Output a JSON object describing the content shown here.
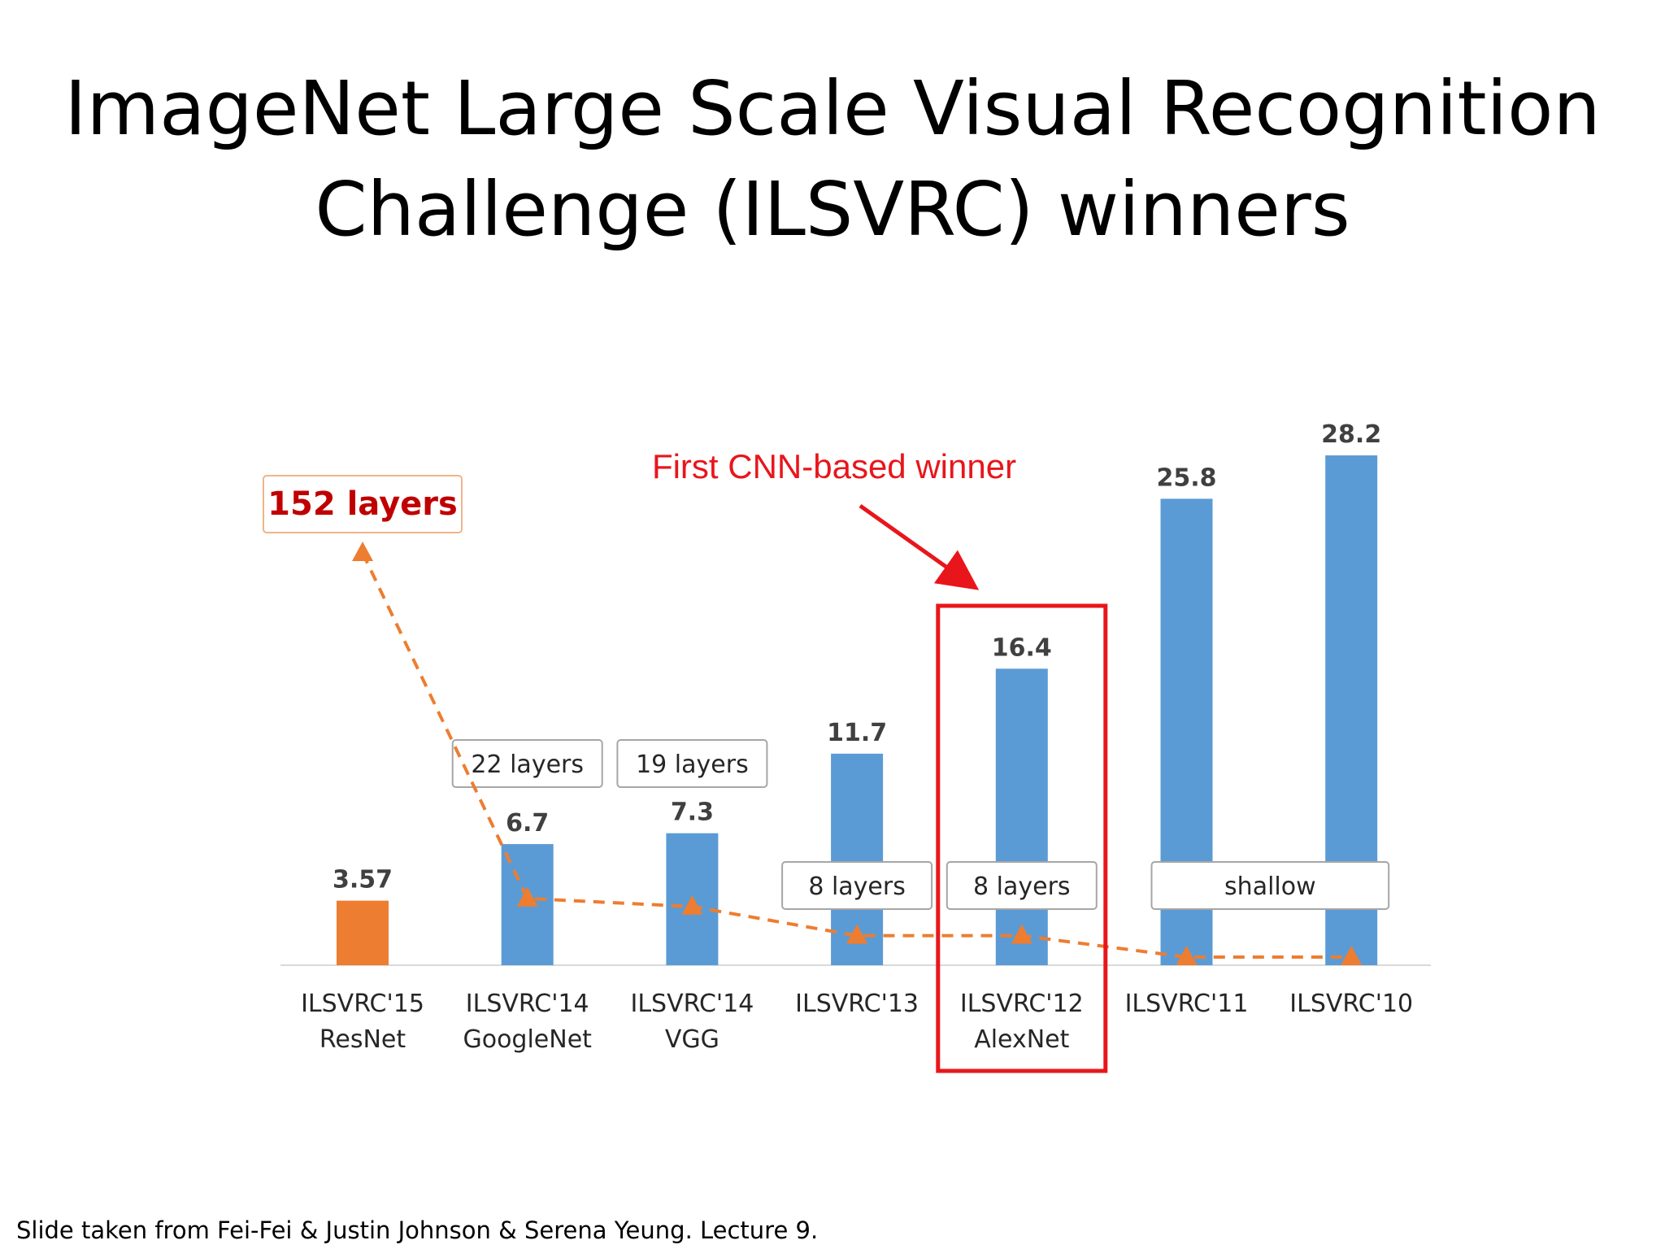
{
  "slide": {
    "title_line1": "ImageNet Large Scale Visual Recognition",
    "title_line2": "Challenge (ILSVRC) winners",
    "caption": "Slide taken from Fei-Fei & Justin Johnson & Serena Yeung. Lecture 9."
  },
  "chart_data": {
    "type": "bar",
    "title": "",
    "xlabel": "",
    "ylabel": "",
    "ylim": [
      0,
      28.2
    ],
    "grid": false,
    "categories": [
      [
        "ILSVRC'15",
        "ResNet"
      ],
      [
        "ILSVRC'14",
        "GoogleNet"
      ],
      [
        "ILSVRC'14",
        "VGG"
      ],
      [
        "ILSVRC'13",
        ""
      ],
      [
        "ILSVRC'12",
        "AlexNet"
      ],
      [
        "ILSVRC'11",
        ""
      ],
      [
        "ILSVRC'10",
        ""
      ]
    ],
    "values": [
      3.57,
      6.7,
      7.3,
      11.7,
      16.4,
      25.8,
      28.2
    ],
    "value_labels": [
      "3.57",
      "6.7",
      "7.3",
      "11.7",
      "16.4",
      "25.8",
      "28.2"
    ],
    "bar_colors": [
      "#ed7d31",
      "#5b9bd5",
      "#5b9bd5",
      "#5b9bd5",
      "#5b9bd5",
      "#5b9bd5",
      "#5b9bd5"
    ],
    "layer_labels": [
      {
        "text": "152 layers",
        "bars": [
          0
        ],
        "style": "highlight"
      },
      {
        "text": "22 layers",
        "bars": [
          1
        ],
        "style": "normal"
      },
      {
        "text": "19 layers",
        "bars": [
          2
        ],
        "style": "normal"
      },
      {
        "text": "8 layers",
        "bars": [
          3
        ],
        "style": "normal"
      },
      {
        "text": "8 layers",
        "bars": [
          4
        ],
        "style": "normal"
      },
      {
        "text": "shallow",
        "bars": [
          5,
          6
        ],
        "style": "normal"
      }
    ],
    "depth_trend": {
      "note": "dashed orange line with triangle markers indicating relative network depth",
      "color": "#ed7d31",
      "relative_depth": [
        1.0,
        0.145,
        0.125,
        0.053,
        0.053,
        0.0,
        0.0
      ]
    },
    "annotation": {
      "text": "First CNN-based winner",
      "color": "#e8161b",
      "target_bar": 4
    },
    "colors": {
      "highlight_bar": "#ed7d31",
      "bar": "#5b9bd5",
      "annotation": "#e8161b",
      "highlight_label": "#c00000"
    }
  }
}
